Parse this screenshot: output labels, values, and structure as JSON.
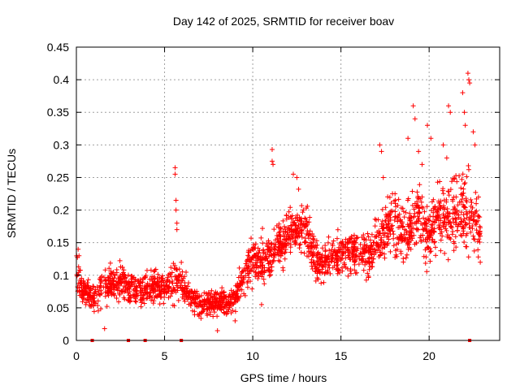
{
  "chart_data": {
    "type": "scatter",
    "title": "Day 142 of 2025, SRMTID for receiver boav",
    "xlabel": "GPS time / hours",
    "ylabel": "SRMTID / TECUs",
    "xlim": [
      0,
      24
    ],
    "ylim": [
      0,
      0.45
    ],
    "x_ticks": [
      0,
      5,
      10,
      15,
      20
    ],
    "x_tick_labels": [
      "0",
      "5",
      "10",
      "15",
      "20"
    ],
    "y_ticks": [
      0,
      0.05,
      0.1,
      0.15,
      0.2,
      0.25,
      0.3,
      0.35,
      0.4,
      0.45
    ],
    "y_tick_labels": [
      "0",
      "0.05",
      "0.1",
      "0.15",
      "0.2",
      "0.25",
      "0.3",
      "0.35",
      "0.4",
      "0.45"
    ],
    "grid": true,
    "marker": "plus",
    "color": "#ff0000",
    "series_name": "SRMTID",
    "trend": {
      "x": [
        0,
        0.25,
        0.5,
        1,
        1.5,
        2,
        2.5,
        3,
        3.5,
        4,
        4.5,
        5,
        5.5,
        6,
        6.5,
        7,
        7.5,
        8,
        8.5,
        9,
        9.5,
        10,
        10.5,
        11,
        11.5,
        12,
        12.5,
        13,
        13.5,
        14,
        14.5,
        15,
        15.5,
        16,
        16.5,
        17,
        17.5,
        18,
        18.5,
        19,
        19.5,
        20,
        20.5,
        21,
        21.5,
        22,
        22.5,
        22.9
      ],
      "y": [
        0.11,
        0.08,
        0.075,
        0.065,
        0.08,
        0.085,
        0.09,
        0.08,
        0.075,
        0.08,
        0.085,
        0.08,
        0.09,
        0.085,
        0.065,
        0.055,
        0.055,
        0.06,
        0.055,
        0.065,
        0.1,
        0.13,
        0.12,
        0.125,
        0.14,
        0.16,
        0.175,
        0.17,
        0.125,
        0.12,
        0.13,
        0.125,
        0.135,
        0.14,
        0.13,
        0.15,
        0.17,
        0.18,
        0.17,
        0.175,
        0.19,
        0.16,
        0.19,
        0.18,
        0.2,
        0.2,
        0.19,
        0.17
      ],
      "spread": [
        0.03,
        0.025,
        0.02,
        0.02,
        0.025,
        0.025,
        0.025,
        0.025,
        0.02,
        0.025,
        0.025,
        0.025,
        0.03,
        0.03,
        0.02,
        0.02,
        0.02,
        0.02,
        0.02,
        0.02,
        0.03,
        0.035,
        0.035,
        0.035,
        0.035,
        0.035,
        0.035,
        0.035,
        0.03,
        0.03,
        0.03,
        0.03,
        0.03,
        0.03,
        0.03,
        0.035,
        0.04,
        0.045,
        0.045,
        0.045,
        0.05,
        0.05,
        0.05,
        0.05,
        0.06,
        0.06,
        0.05,
        0.04
      ]
    },
    "outliers": [
      {
        "x": 0.1,
        "y": 0.14
      },
      {
        "x": 0.15,
        "y": 0.13
      },
      {
        "x": 5.6,
        "y": 0.265
      },
      {
        "x": 5.6,
        "y": 0.255
      },
      {
        "x": 5.65,
        "y": 0.215
      },
      {
        "x": 5.65,
        "y": 0.2
      },
      {
        "x": 5.7,
        "y": 0.18
      },
      {
        "x": 5.7,
        "y": 0.17
      },
      {
        "x": 11.1,
        "y": 0.293
      },
      {
        "x": 11.1,
        "y": 0.275
      },
      {
        "x": 11.15,
        "y": 0.27
      },
      {
        "x": 12.3,
        "y": 0.255
      },
      {
        "x": 12.5,
        "y": 0.25
      },
      {
        "x": 12.6,
        "y": 0.232
      },
      {
        "x": 17.2,
        "y": 0.3
      },
      {
        "x": 17.3,
        "y": 0.29
      },
      {
        "x": 17.4,
        "y": 0.25
      },
      {
        "x": 18.8,
        "y": 0.31
      },
      {
        "x": 19.1,
        "y": 0.36
      },
      {
        "x": 19.2,
        "y": 0.34
      },
      {
        "x": 19.4,
        "y": 0.29
      },
      {
        "x": 19.6,
        "y": 0.27
      },
      {
        "x": 19.9,
        "y": 0.33
      },
      {
        "x": 20.1,
        "y": 0.31
      },
      {
        "x": 20.8,
        "y": 0.3
      },
      {
        "x": 21.0,
        "y": 0.28
      },
      {
        "x": 21.1,
        "y": 0.36
      },
      {
        "x": 21.2,
        "y": 0.35
      },
      {
        "x": 21.9,
        "y": 0.38
      },
      {
        "x": 22.0,
        "y": 0.35
      },
      {
        "x": 22.05,
        "y": 0.33
      },
      {
        "x": 22.2,
        "y": 0.41
      },
      {
        "x": 22.25,
        "y": 0.4
      },
      {
        "x": 22.3,
        "y": 0.395
      },
      {
        "x": 22.5,
        "y": 0.32
      },
      {
        "x": 22.6,
        "y": 0.3
      },
      {
        "x": 22.8,
        "y": 0.22
      },
      {
        "x": 22.9,
        "y": 0.12
      },
      {
        "x": 8.0,
        "y": 0.015
      },
      {
        "x": 1.6,
        "y": 0.018
      },
      {
        "x": 9.0,
        "y": 0.03
      },
      {
        "x": 10.5,
        "y": 0.055
      }
    ],
    "zero_markers": [
      0.9,
      2.95,
      3.9,
      5.95,
      22.3
    ]
  }
}
